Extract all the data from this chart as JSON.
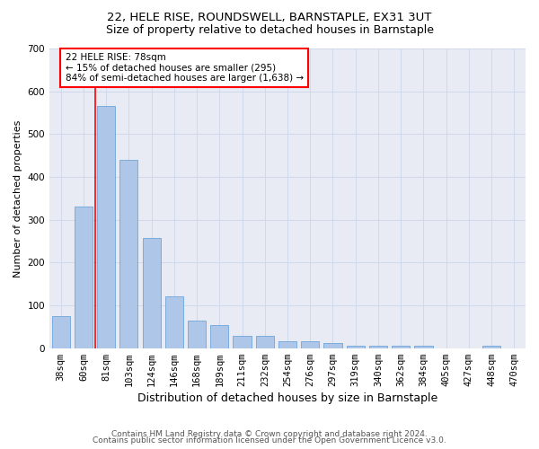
{
  "title1": "22, HELE RISE, ROUNDSWELL, BARNSTAPLE, EX31 3UT",
  "title2": "Size of property relative to detached houses in Barnstaple",
  "xlabel": "Distribution of detached houses by size in Barnstaple",
  "ylabel": "Number of detached properties",
  "categories": [
    "38sqm",
    "60sqm",
    "81sqm",
    "103sqm",
    "124sqm",
    "146sqm",
    "168sqm",
    "189sqm",
    "211sqm",
    "232sqm",
    "254sqm",
    "276sqm",
    "297sqm",
    "319sqm",
    "340sqm",
    "362sqm",
    "384sqm",
    "405sqm",
    "427sqm",
    "448sqm",
    "470sqm"
  ],
  "values": [
    75,
    330,
    565,
    440,
    258,
    122,
    65,
    53,
    28,
    28,
    16,
    16,
    12,
    5,
    5,
    5,
    5,
    0,
    0,
    6,
    0
  ],
  "bar_color": "#aec6e8",
  "bar_edge_color": "#5b9bd5",
  "grid_color": "#d0d8ec",
  "background_color": "#e8eaf4",
  "vline_color": "red",
  "vline_position": 1.5,
  "annotation_text": "22 HELE RISE: 78sqm\n← 15% of detached houses are smaller (295)\n84% of semi-detached houses are larger (1,638) →",
  "footer1": "Contains HM Land Registry data © Crown copyright and database right 2024.",
  "footer2": "Contains public sector information licensed under the Open Government Licence v3.0.",
  "ylim": [
    0,
    700
  ],
  "yticks": [
    0,
    100,
    200,
    300,
    400,
    500,
    600,
    700
  ],
  "title1_fontsize": 9.5,
  "title2_fontsize": 9,
  "xlabel_fontsize": 9,
  "ylabel_fontsize": 8,
  "tick_fontsize": 7.5,
  "annotation_fontsize": 7.5,
  "footer_fontsize": 6.5
}
